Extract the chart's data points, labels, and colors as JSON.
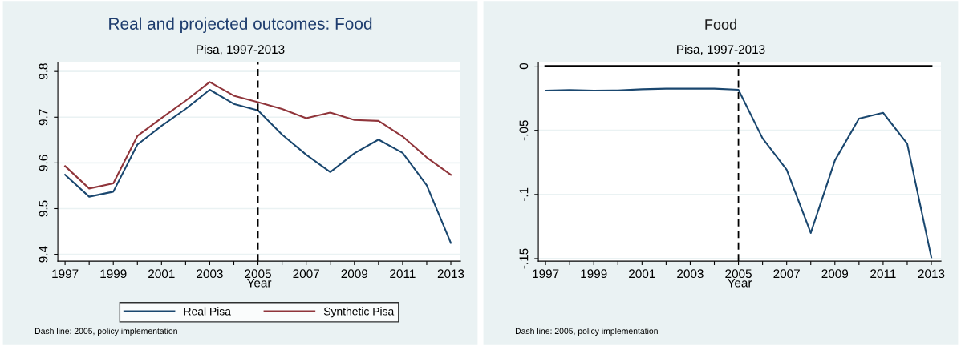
{
  "chart_data": [
    {
      "type": "line",
      "title": "Real and projected outcomes: Food",
      "subtitle": "Pisa, 1997-2013",
      "xlabel": "Year",
      "x": [
        1997,
        1998,
        1999,
        2000,
        2001,
        2002,
        2003,
        2004,
        2005,
        2006,
        2007,
        2008,
        2009,
        2010,
        2011,
        2012,
        2013
      ],
      "series": [
        {
          "name": "Real Pisa",
          "color": "#1a476f",
          "values": [
            9.574,
            9.526,
            9.537,
            9.64,
            9.681,
            9.718,
            9.76,
            9.729,
            9.715,
            9.662,
            9.618,
            9.58,
            9.621,
            9.651,
            9.622,
            9.551,
            9.425
          ]
        },
        {
          "name": "Synthetic Pisa",
          "color": "#90353b",
          "values": [
            9.593,
            9.544,
            9.555,
            9.659,
            9.698,
            9.736,
            9.777,
            9.747,
            9.733,
            9.718,
            9.698,
            9.71,
            9.694,
            9.692,
            9.658,
            9.612,
            9.574
          ]
        }
      ],
      "xlim": [
        1996.7,
        2013.4
      ],
      "ylim": [
        9.385,
        9.82
      ],
      "xticks": [
        1997,
        {
          "value": 1998,
          "label": null
        },
        1999,
        {
          "value": 2000,
          "label": null
        },
        2001,
        {
          "value": 2002,
          "label": null
        },
        2003,
        {
          "value": 2004,
          "label": null
        },
        2005,
        {
          "value": 2006,
          "label": null
        },
        2007,
        {
          "value": 2008,
          "label": null
        },
        2009,
        {
          "value": 2010,
          "label": null
        },
        2011,
        {
          "value": 2012,
          "label": null
        },
        2013
      ],
      "yticks": [
        9.4,
        9.5,
        9.6,
        9.7,
        9.8
      ],
      "ref_lines": [
        {
          "axis": "x",
          "value": 2005,
          "color": "#000000",
          "line_style": "dashed"
        }
      ],
      "grid": "y",
      "legend": "bottom",
      "marker": "none",
      "line_style": "solid",
      "annotations": [
        "Dash line: 2005, policy implementation"
      ]
    },
    {
      "type": "line",
      "title": "Food",
      "subtitle": "Pisa, 1997-2013",
      "xlabel": "Year",
      "x": [
        1997,
        1998,
        1999,
        2000,
        2001,
        2002,
        2003,
        2004,
        2005,
        2006,
        2007,
        2008,
        2009,
        2010,
        2011,
        2012,
        2013
      ],
      "series": [
        {
          "color": "#1a476f",
          "values": [
            -0.019,
            -0.0186,
            -0.019,
            -0.0188,
            -0.018,
            -0.0175,
            -0.0175,
            -0.0175,
            -0.0184,
            -0.0562,
            -0.0807,
            -0.13,
            -0.0735,
            -0.0408,
            -0.0363,
            -0.0604,
            -0.149
          ]
        }
      ],
      "xlim": [
        1996.7,
        2013.4
      ],
      "ylim": [
        -0.152,
        0.003
      ],
      "xticks": [
        1997,
        {
          "value": 1998,
          "label": null
        },
        1999,
        {
          "value": 2000,
          "label": null
        },
        2001,
        {
          "value": 2002,
          "label": null
        },
        2003,
        {
          "value": 2004,
          "label": null
        },
        2005,
        {
          "value": 2006,
          "label": null
        },
        2007,
        {
          "value": 2008,
          "label": null
        },
        2009,
        {
          "value": 2010,
          "label": null
        },
        2011,
        {
          "value": 2012,
          "label": null
        },
        2013
      ],
      "yticks": [
        {
          "value": 0,
          "label": "0"
        },
        {
          "value": -0.05,
          "label": "-.05"
        },
        {
          "value": -0.1,
          "label": "-.1"
        },
        {
          "value": -0.15,
          "label": "-.15"
        }
      ],
      "ref_lines": [
        {
          "axis": "x",
          "value": 2005,
          "color": "#000000",
          "line_style": "dashed"
        },
        {
          "axis": "y",
          "value": 0,
          "color": "#000000",
          "line_style": "solid"
        }
      ],
      "grid": "y",
      "marker": "none",
      "line_style": "solid",
      "annotations": [
        "Dash line: 2005, policy implementation"
      ]
    }
  ]
}
